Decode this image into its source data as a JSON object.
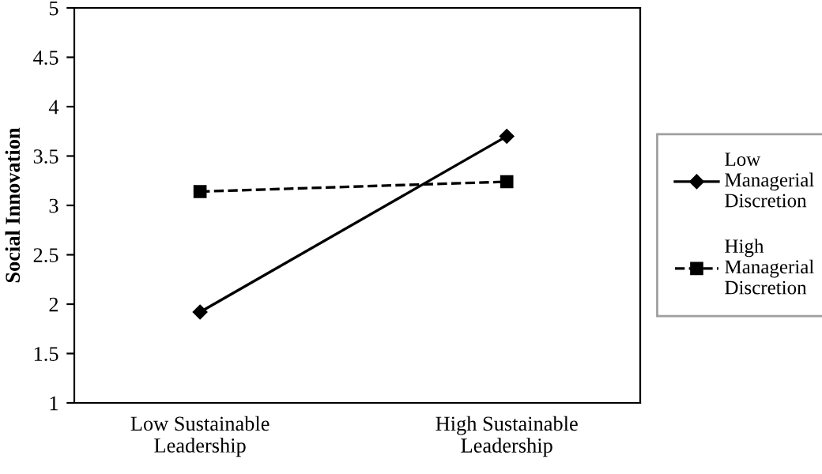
{
  "chart_data": {
    "type": "line",
    "ylabel": "Social Innovation",
    "categories": [
      "Low Sustainable Leadership",
      "High Sustainable Leadership"
    ],
    "series": [
      {
        "name": "Low Managerial Discretion",
        "color": "#000000",
        "values": [
          1.92,
          3.7
        ],
        "marker": "diamond",
        "line_style": "solid"
      },
      {
        "name": "High Managerial Discretion",
        "color": "#000000",
        "values": [
          3.14,
          3.24
        ],
        "marker": "square",
        "line_style": "dashed"
      }
    ],
    "ylim": [
      1,
      5
    ],
    "yticks": [
      1,
      1.5,
      2,
      2.5,
      3,
      3.5,
      4,
      4.5,
      5
    ],
    "grid": false,
    "legend": "right"
  }
}
